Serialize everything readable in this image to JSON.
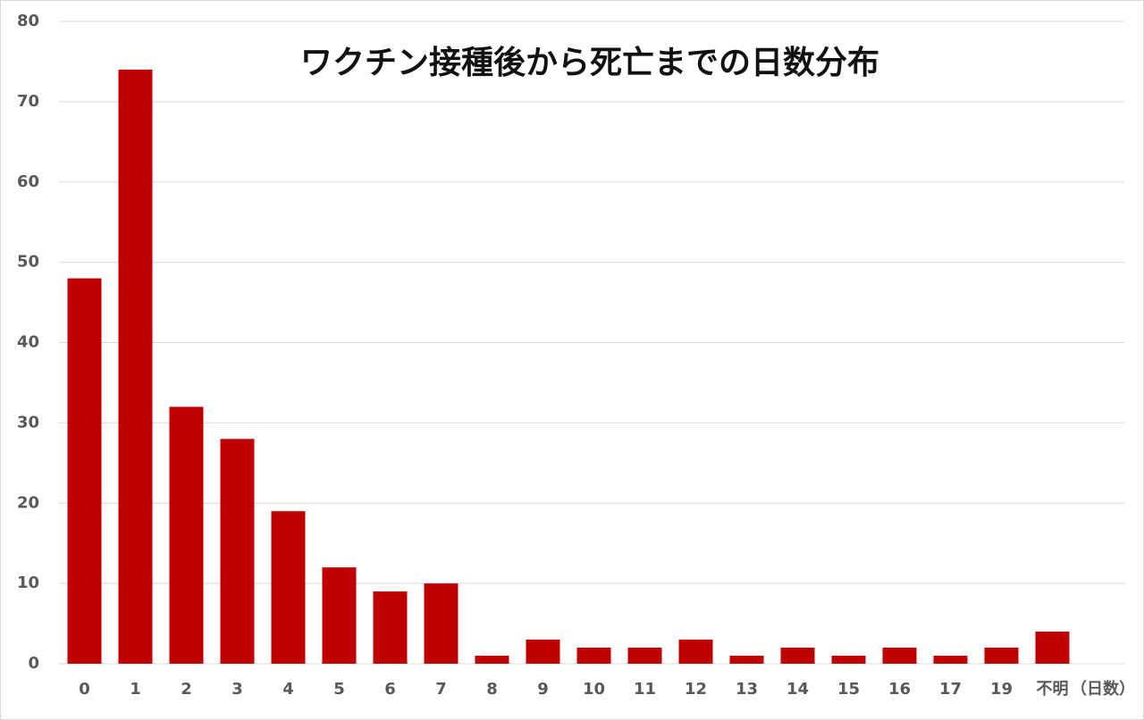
{
  "chart_data": {
    "type": "bar",
    "title": "ワクチン接種後から死亡までの日数分布",
    "x_label": "（日数）",
    "categories": [
      "0",
      "1",
      "2",
      "3",
      "4",
      "5",
      "6",
      "7",
      "8",
      "9",
      "10",
      "11",
      "12",
      "13",
      "14",
      "15",
      "16",
      "17",
      "19",
      "不明"
    ],
    "values": [
      48,
      74,
      32,
      28,
      19,
      12,
      9,
      10,
      1,
      3,
      2,
      2,
      3,
      1,
      2,
      1,
      2,
      1,
      2,
      4
    ],
    "color": "#c00000",
    "ylim": [
      0,
      80
    ],
    "yticks": [
      0,
      10,
      20,
      30,
      40,
      50,
      60,
      70,
      80
    ],
    "grid": true
  }
}
